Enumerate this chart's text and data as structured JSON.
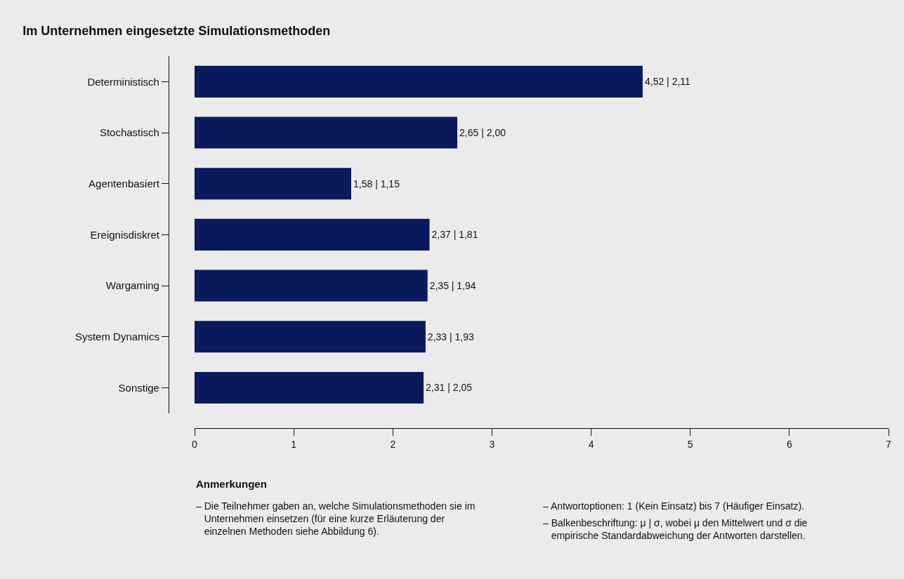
{
  "chart_data": {
    "type": "bar",
    "orientation": "horizontal",
    "title": "Im Unternehmen eingesetzte Simulationsmethoden",
    "categories": [
      "Deterministisch",
      "Stochastisch",
      "Agentenbasiert",
      "Ereignisdiskret",
      "Wargaming",
      "System Dynamics",
      "Sonstige"
    ],
    "values": [
      4.52,
      2.65,
      1.58,
      2.37,
      2.35,
      2.33,
      2.31
    ],
    "value_labels": [
      "4,52 | 2,11",
      "2,65 | 2,00",
      "1,58 | 1,15",
      "2,37 | 1,81",
      "2,35 | 1,94",
      "2,33 | 1,93",
      "2,31 | 2,05"
    ],
    "color": "#0b1a5c",
    "xlim": [
      0,
      7
    ],
    "xticks": [
      0,
      1,
      2,
      3,
      4,
      5,
      6,
      7
    ],
    "grid": false,
    "legend": false,
    "annotations": [
      "Anmerkungen",
      "– Die Teilnehmer gaben an, welche Simulationsmethoden sie im Unternehmen einsetzen (für eine kurze Erläuterung der einzelnen Methoden siehe Abbildung 6).",
      "– Antwortoptionen: 1 (Kein Einsatz) bis 7 (Häufiger Einsatz).",
      "– Balkenbeschriftung: μ | σ, wobei μ den Mittelwert und σ die empirische Standardabweichung der Antworten darstellen."
    ]
  }
}
